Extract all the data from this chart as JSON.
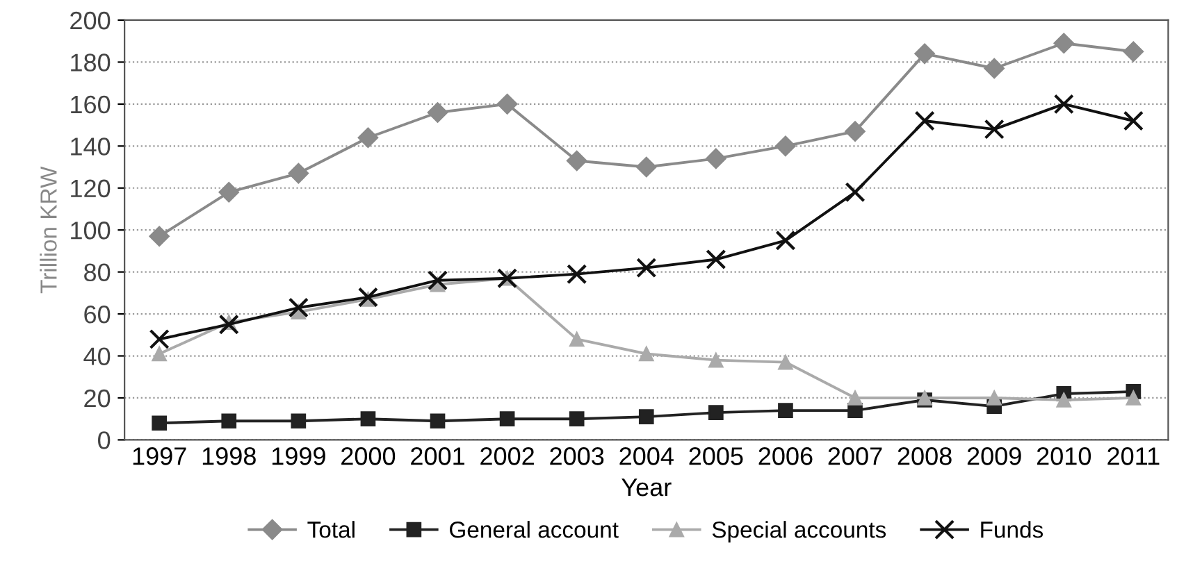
{
  "chart_data": {
    "type": "line",
    "xlabel": "Year",
    "ylabel": "Trillion KRW",
    "categories": [
      "1997",
      "1998",
      "1999",
      "2000",
      "2001",
      "2002",
      "2003",
      "2004",
      "2005",
      "2006",
      "2007",
      "2008",
      "2009",
      "2010",
      "2011"
    ],
    "series": [
      {
        "name": "Total",
        "color": "#8a8a8a",
        "marker": "diamond",
        "values": [
          97,
          118,
          127,
          144,
          156,
          160,
          133,
          130,
          134,
          140,
          147,
          184,
          177,
          189,
          185
        ]
      },
      {
        "name": "General account",
        "color": "#222222",
        "marker": "square",
        "values": [
          8,
          9,
          9,
          10,
          9,
          10,
          10,
          11,
          13,
          14,
          14,
          19,
          16,
          22,
          23
        ]
      },
      {
        "name": "Special accounts",
        "color": "#aaaaaa",
        "marker": "triangle",
        "values": [
          41,
          56,
          61,
          67,
          74,
          77,
          48,
          41,
          38,
          37,
          20,
          20,
          20,
          19,
          20
        ]
      },
      {
        "name": "Funds",
        "color": "#111111",
        "marker": "cross",
        "values": [
          48,
          55,
          63,
          68,
          76,
          77,
          79,
          82,
          86,
          95,
          118,
          152,
          148,
          160,
          152
        ]
      }
    ],
    "ylim": [
      0,
      200
    ],
    "yticks": [
      0,
      20,
      40,
      60,
      80,
      100,
      120,
      140,
      160,
      180,
      200
    ],
    "grid": "y",
    "legend": "bottom",
    "line_style": "solid"
  }
}
